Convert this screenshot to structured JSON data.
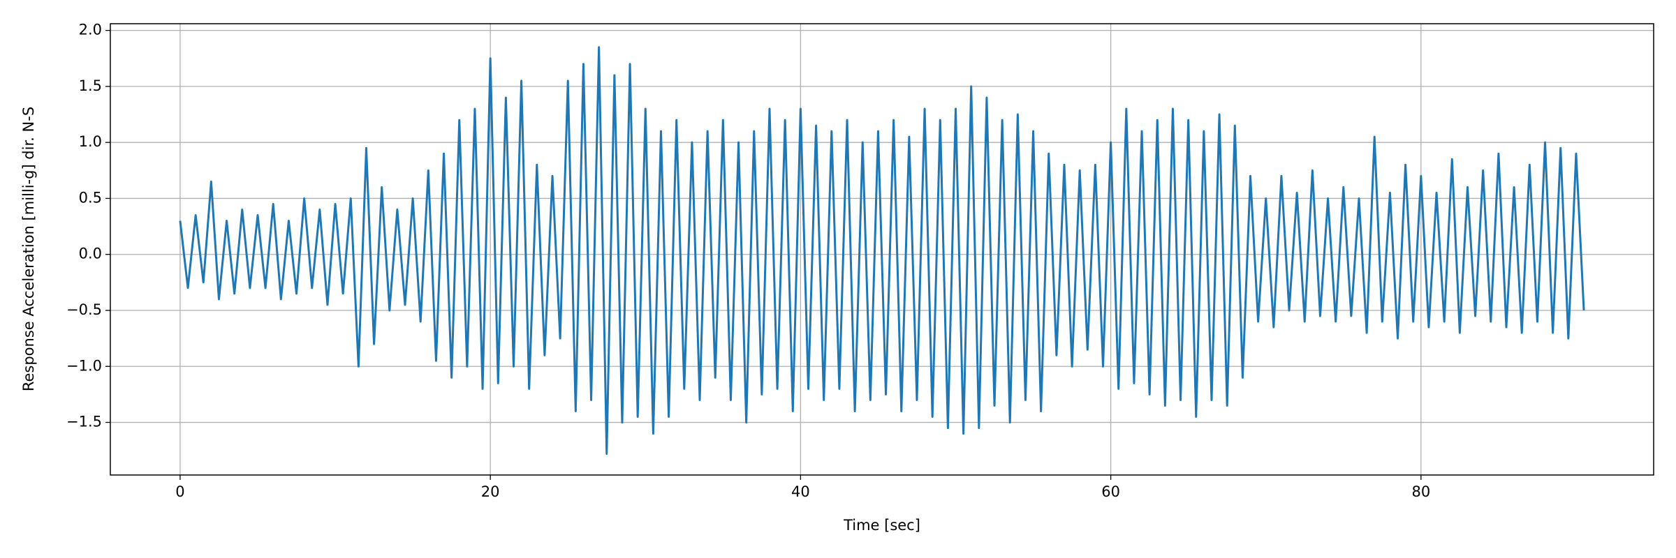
{
  "chart_data": {
    "type": "line",
    "xlabel": "Time [sec]",
    "ylabel": "Response Acceleration [milli-g] dir. N-S",
    "x": [
      0,
      0.5,
      1,
      1.5,
      2,
      2.5,
      3,
      3.5,
      4,
      4.5,
      5,
      5.5,
      6,
      6.5,
      7,
      7.5,
      8,
      8.5,
      9,
      9.5,
      10,
      10.5,
      11,
      11.5,
      12,
      12.5,
      13,
      13.5,
      14,
      14.5,
      15,
      15.5,
      16,
      16.5,
      17,
      17.5,
      18,
      18.5,
      19,
      19.5,
      20,
      20.5,
      21,
      21.5,
      22,
      22.5,
      23,
      23.5,
      24,
      24.5,
      25,
      25.5,
      26,
      26.5,
      27,
      27.5,
      28,
      28.5,
      29,
      29.5,
      30,
      30.5,
      31,
      31.5,
      32,
      32.5,
      33,
      33.5,
      34,
      34.5,
      35,
      35.5,
      36,
      36.5,
      37,
      37.5,
      38,
      38.5,
      39,
      39.5,
      40,
      40.5,
      41,
      41.5,
      42,
      42.5,
      43,
      43.5,
      44,
      44.5,
      45,
      45.5,
      46,
      46.5,
      47,
      47.5,
      48,
      48.5,
      49,
      49.5,
      50,
      50.5,
      51,
      51.5,
      52,
      52.5,
      53,
      53.5,
      54,
      54.5,
      55,
      55.5,
      56,
      56.5,
      57,
      57.5,
      58,
      58.5,
      59,
      59.5,
      60,
      60.5,
      61,
      61.5,
      62,
      62.5,
      63,
      63.5,
      64,
      64.5,
      65,
      65.5,
      66,
      66.5,
      67,
      67.5,
      68,
      68.5,
      69,
      69.5,
      70,
      70.5,
      71,
      71.5,
      72,
      72.5,
      73,
      73.5,
      74,
      74.5,
      75,
      75.5,
      76,
      76.5,
      77,
      77.5,
      78,
      78.5,
      79,
      79.5,
      80,
      80.5,
      81,
      81.5,
      82,
      82.5,
      83,
      83.5,
      84,
      84.5,
      85,
      85.5,
      86,
      86.5,
      87,
      87.5,
      88,
      88.5,
      89,
      89.5,
      90,
      90.5
    ],
    "series": [
      {
        "color": "#1f77b4",
        "values": [
          0.3,
          -0.3,
          0.35,
          -0.25,
          0.65,
          -0.4,
          0.3,
          -0.35,
          0.4,
          -0.3,
          0.35,
          -0.3,
          0.45,
          -0.4,
          0.3,
          -0.35,
          0.5,
          -0.3,
          0.4,
          -0.45,
          0.45,
          -0.35,
          0.5,
          -1.0,
          0.95,
          -0.8,
          0.6,
          -0.5,
          0.4,
          -0.45,
          0.5,
          -0.6,
          0.75,
          -0.95,
          0.9,
          -1.1,
          1.2,
          -1.0,
          1.3,
          -1.2,
          1.75,
          -1.15,
          1.4,
          -1.0,
          1.55,
          -1.2,
          0.8,
          -0.9,
          0.7,
          -0.75,
          1.55,
          -1.4,
          1.7,
          -1.3,
          1.85,
          -1.78,
          1.6,
          -1.5,
          1.7,
          -1.45,
          1.3,
          -1.6,
          1.1,
          -1.45,
          1.2,
          -1.2,
          1.0,
          -1.3,
          1.1,
          -1.1,
          1.2,
          -1.3,
          1.0,
          -1.5,
          1.1,
          -1.25,
          1.3,
          -1.2,
          1.2,
          -1.4,
          1.3,
          -1.2,
          1.15,
          -1.3,
          1.1,
          -1.2,
          1.2,
          -1.4,
          1.0,
          -1.3,
          1.1,
          -1.25,
          1.2,
          -1.4,
          1.05,
          -1.3,
          1.3,
          -1.45,
          1.2,
          -1.55,
          1.3,
          -1.6,
          1.5,
          -1.55,
          1.4,
          -1.35,
          1.2,
          -1.5,
          1.25,
          -1.3,
          1.1,
          -1.4,
          0.9,
          -0.9,
          0.8,
          -1.0,
          0.75,
          -0.85,
          0.8,
          -1.0,
          1.0,
          -1.2,
          1.3,
          -1.15,
          1.1,
          -1.25,
          1.2,
          -1.35,
          1.3,
          -1.3,
          1.2,
          -1.45,
          1.1,
          -1.3,
          1.25,
          -1.35,
          1.15,
          -1.1,
          0.7,
          -0.6,
          0.5,
          -0.65,
          0.7,
          -0.5,
          0.55,
          -0.6,
          0.75,
          -0.55,
          0.5,
          -0.6,
          0.6,
          -0.55,
          0.5,
          -0.7,
          1.05,
          -0.6,
          0.55,
          -0.75,
          0.8,
          -0.6,
          0.7,
          -0.65,
          0.55,
          -0.6,
          0.85,
          -0.7,
          0.6,
          -0.55,
          0.75,
          -0.6,
          0.9,
          -0.65,
          0.6,
          -0.7,
          0.8,
          -0.6,
          1.0,
          -0.7,
          0.95,
          -0.75,
          0.9,
          -0.5
        ]
      }
    ],
    "xlim": [
      -4.5,
      95
    ],
    "ylim": [
      -1.97,
      2.06
    ],
    "xticks": [
      0,
      20,
      40,
      60,
      80
    ],
    "yticks": [
      {
        "value": -1.5,
        "label": "−1.5"
      },
      {
        "value": -1,
        "label": "−1.0"
      },
      {
        "value": -0.5,
        "label": "−0.5"
      },
      {
        "value": 0,
        "label": "0.0"
      },
      0.5,
      {
        "value": 1,
        "label": "1.0"
      },
      1.5,
      {
        "value": 2,
        "label": "2.0"
      }
    ],
    "grid": true
  }
}
